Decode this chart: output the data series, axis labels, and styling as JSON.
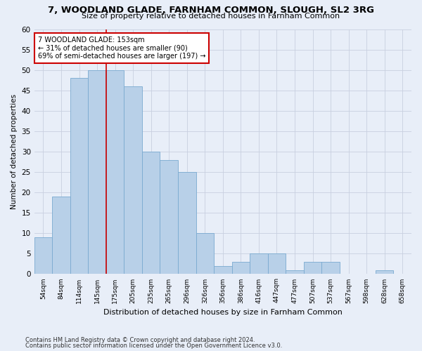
{
  "title": "7, WOODLAND GLADE, FARNHAM COMMON, SLOUGH, SL2 3RG",
  "subtitle": "Size of property relative to detached houses in Farnham Common",
  "xlabel": "Distribution of detached houses by size in Farnham Common",
  "ylabel": "Number of detached properties",
  "bar_color": "#b8d0e8",
  "bar_edge_color": "#7aaad0",
  "categories": [
    "54sqm",
    "84sqm",
    "114sqm",
    "145sqm",
    "175sqm",
    "205sqm",
    "235sqm",
    "265sqm",
    "296sqm",
    "326sqm",
    "356sqm",
    "386sqm",
    "416sqm",
    "447sqm",
    "477sqm",
    "507sqm",
    "537sqm",
    "567sqm",
    "598sqm",
    "628sqm",
    "658sqm"
  ],
  "values": [
    9,
    19,
    48,
    50,
    50,
    46,
    30,
    28,
    25,
    10,
    2,
    3,
    5,
    5,
    1,
    3,
    3,
    0,
    0,
    1,
    0
  ],
  "ylim": [
    0,
    60
  ],
  "yticks": [
    0,
    5,
    10,
    15,
    20,
    25,
    30,
    35,
    40,
    45,
    50,
    55,
    60
  ],
  "annotation_text": "7 WOODLAND GLADE: 153sqm\n← 31% of detached houses are smaller (90)\n69% of semi-detached houses are larger (197) →",
  "annotation_box_color": "#ffffff",
  "annotation_box_edge": "#cc0000",
  "property_line_color": "#cc0000",
  "footer_line1": "Contains HM Land Registry data © Crown copyright and database right 2024.",
  "footer_line2": "Contains public sector information licensed under the Open Government Licence v3.0.",
  "bg_color": "#e8eef8",
  "plot_bg_color": "#e8eef8",
  "grid_color": "#c8d0e0"
}
